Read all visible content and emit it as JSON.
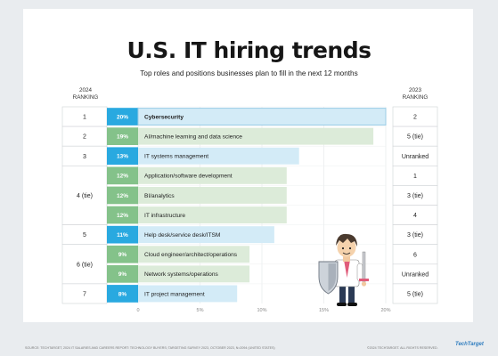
{
  "header": {
    "title": "U.S. IT hiring trends",
    "subtitle": "Top roles and positions businesses plan to fill in the next 12 months",
    "left_col": "2024\nRANKING",
    "right_col": "2023\nRANKING"
  },
  "chart_data": {
    "type": "bar",
    "orientation": "horizontal",
    "title": "U.S. IT hiring trends",
    "subtitle": "Top roles and positions businesses plan to fill in the next 12 months",
    "categories": [
      "Cybersecurity",
      "AI/machine learning and data science",
      "IT systems management",
      "Application/software development",
      "BI/analytics",
      "IT infrastructure",
      "Help desk/service desk/ITSM",
      "Cloud engineer/architect/operations",
      "Network systems/operations",
      "IT project management"
    ],
    "values": [
      20,
      19,
      13,
      12,
      12,
      12,
      11,
      9,
      9,
      8
    ],
    "value_labels": [
      "20%",
      "19%",
      "13%",
      "12%",
      "12%",
      "12%",
      "11%",
      "9%",
      "9%",
      "8%"
    ],
    "rank_2024": [
      "1",
      "2",
      "3",
      "4 (tie)",
      "5",
      "6 (tie)",
      "7"
    ],
    "rank_2023": [
      "2",
      "5 (tie)",
      "Unranked",
      "1",
      "3 (tie)",
      "4",
      "3 (tie)",
      "6",
      "Unranked",
      "5 (tie)"
    ],
    "x_ticks": [
      "0",
      "5%",
      "10%",
      "15%",
      "20%"
    ],
    "xlim": [
      0,
      20
    ],
    "colors": {
      "blue": "#d3ebf7",
      "blue_value": "#29a9e0",
      "green": "#dcebd9",
      "green_value": "#84c28a"
    },
    "bar_colors": [
      "blue",
      "green",
      "blue",
      "green",
      "green",
      "green",
      "blue",
      "green",
      "green",
      "blue"
    ]
  },
  "footer": {
    "source": "SOURCE: TECHTARGET, 2024 IT SALARIES AND CAREERS REPORT: TECHNOLOGY BUYERS; TARGETING SURVEY 2023, OCTOBER 2023, N=2094 (UNITED STATES)",
    "copyright": "©2024 TECHTARGET. ALL RIGHTS RESERVED.",
    "logo": "TechTarget"
  }
}
